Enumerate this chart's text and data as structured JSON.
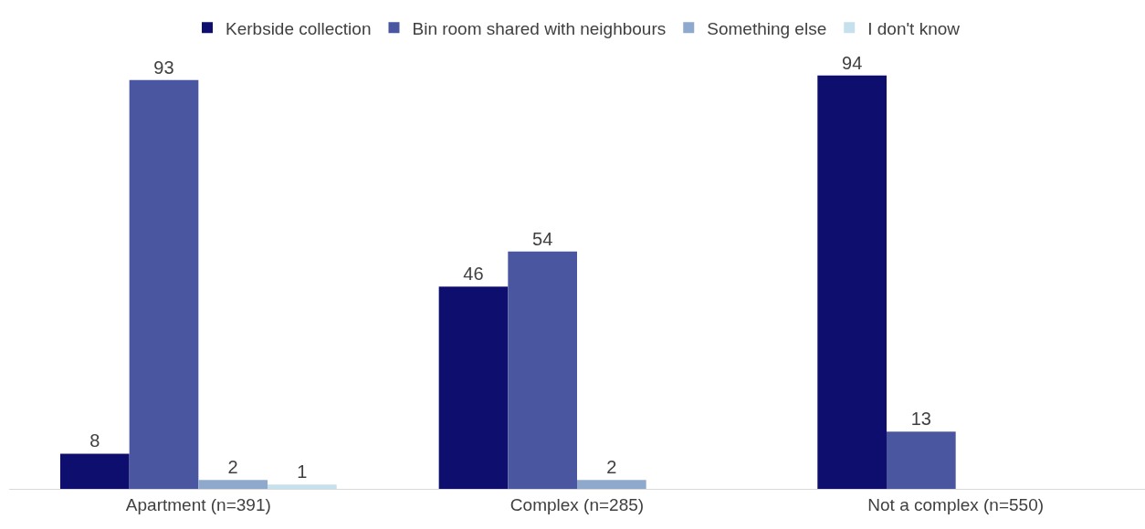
{
  "chart_data": {
    "type": "bar",
    "categories": [
      "Apartment (n=391)",
      "Complex (n=285)",
      "Not a complex (n=550)"
    ],
    "series": [
      {
        "name": "Kerbside collection",
        "color": "#0e0e6e",
        "values": [
          8,
          46,
          94
        ]
      },
      {
        "name": "Bin room shared with neighbours",
        "color": "#4a56a0",
        "values": [
          93,
          54,
          13
        ]
      },
      {
        "name": "Something else",
        "color": "#8fa9cc",
        "values": [
          2,
          2,
          null
        ]
      },
      {
        "name": "I don't know",
        "color": "#c6e0ee",
        "values": [
          1,
          null,
          null
        ]
      }
    ],
    "data_labels": true,
    "legend": "top",
    "tick_labels": "x"
  }
}
